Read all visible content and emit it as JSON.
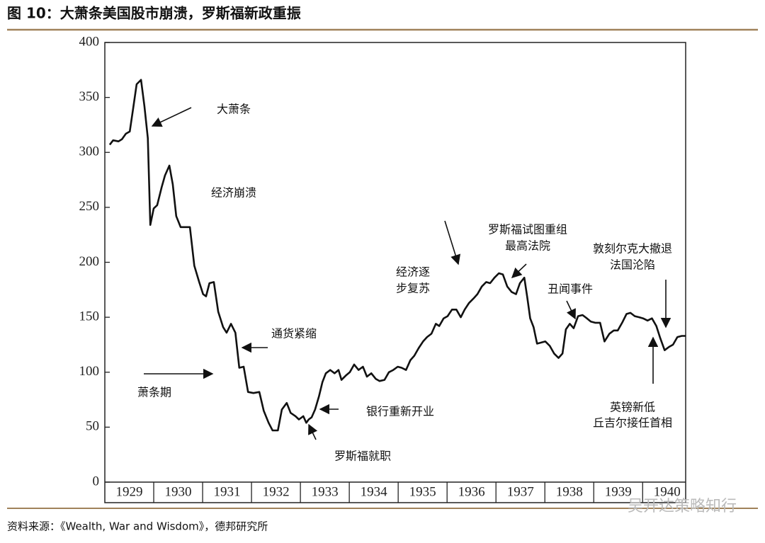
{
  "chart_data": {
    "type": "line",
    "title": "图 10：大萧条美国股市崩溃，罗斯福新政重振",
    "source": "资料来源：《Wealth, War and Wisdom》，德邦研究所",
    "watermark": "吴开达策略知行",
    "color": "#111111",
    "xlim": [
      1929,
      1940.88
    ],
    "ylim": [
      0,
      400
    ],
    "yticks": [
      0,
      50,
      100,
      150,
      200,
      250,
      300,
      350,
      400
    ],
    "xticks": [
      {
        "value": 1929.5,
        "label": "1929"
      },
      {
        "value": 1930.5,
        "label": "1930"
      },
      {
        "value": 1931.5,
        "label": "1931"
      },
      {
        "value": 1932.5,
        "label": "1932"
      },
      {
        "value": 1933.5,
        "label": "1933"
      },
      {
        "value": 1934.5,
        "label": "1934"
      },
      {
        "value": 1935.5,
        "label": "1935"
      },
      {
        "value": 1936.5,
        "label": "1936"
      },
      {
        "value": 1937.5,
        "label": "1937"
      },
      {
        "value": 1938.5,
        "label": "1938"
      },
      {
        "value": 1939.5,
        "label": "1939"
      },
      {
        "value": 1940.5,
        "label": "1940"
      }
    ],
    "x": [
      1929.1,
      1929.17,
      1929.28,
      1929.35,
      1929.43,
      1929.51,
      1929.58,
      1929.65,
      1929.74,
      1929.81,
      1929.88,
      1929.93,
      1930.0,
      1930.07,
      1930.16,
      1930.23,
      1930.32,
      1930.39,
      1930.46,
      1930.55,
      1930.65,
      1930.74,
      1930.83,
      1930.93,
      1931.01,
      1931.07,
      1931.14,
      1931.23,
      1931.32,
      1931.42,
      1931.49,
      1931.58,
      1931.67,
      1931.75,
      1931.84,
      1931.93,
      1932.04,
      1932.16,
      1932.25,
      1932.35,
      1932.43,
      1932.54,
      1932.62,
      1932.72,
      1932.8,
      1932.9,
      1932.97,
      1933.06,
      1933.12,
      1933.17,
      1933.23,
      1933.3,
      1933.38,
      1933.45,
      1933.52,
      1933.61,
      1933.7,
      1933.78,
      1933.84,
      1933.93,
      1934.01,
      1934.1,
      1934.19,
      1934.28,
      1934.36,
      1934.45,
      1934.54,
      1934.62,
      1934.72,
      1934.81,
      1934.9,
      1934.99,
      1935.07,
      1935.16,
      1935.25,
      1935.33,
      1935.42,
      1935.51,
      1935.59,
      1935.68,
      1935.77,
      1935.84,
      1935.93,
      1936.01,
      1936.1,
      1936.19,
      1936.28,
      1936.36,
      1936.45,
      1936.54,
      1936.62,
      1936.71,
      1936.8,
      1936.88,
      1936.97,
      1937.06,
      1937.14,
      1937.23,
      1937.32,
      1937.41,
      1937.49,
      1937.58,
      1937.64,
      1937.7,
      1937.77,
      1937.84,
      1937.93,
      1938.01,
      1938.1,
      1938.19,
      1938.28,
      1938.36,
      1938.43,
      1938.51,
      1938.59,
      1938.68,
      1938.77,
      1938.86,
      1938.94,
      1939.03,
      1939.13,
      1939.22,
      1939.32,
      1939.41,
      1939.49,
      1939.58,
      1939.67,
      1939.75,
      1939.84,
      1939.93,
      1940.01,
      1940.1,
      1940.19,
      1940.28,
      1940.36,
      1940.45,
      1940.54,
      1940.62,
      1940.71,
      1940.8,
      1940.88
    ],
    "values": [
      307,
      311,
      310,
      312,
      317,
      319,
      340,
      362,
      366,
      342,
      313,
      234,
      249,
      252,
      268,
      279,
      288,
      271,
      242,
      232,
      232,
      232,
      197,
      182,
      171,
      169,
      181,
      182,
      155,
      141,
      136,
      144,
      136,
      104,
      105,
      82,
      81,
      82,
      65,
      54,
      47,
      47,
      66,
      72,
      63,
      60,
      57,
      60,
      54,
      57,
      59,
      66,
      78,
      91,
      99,
      102,
      99,
      102,
      93,
      97,
      100,
      107,
      102,
      105,
      96,
      99,
      94,
      92,
      93,
      100,
      102,
      105,
      104,
      102,
      111,
      115,
      122,
      128,
      132,
      135,
      144,
      142,
      149,
      151,
      157,
      157,
      150,
      157,
      163,
      167,
      171,
      178,
      182,
      181,
      186,
      190,
      189,
      178,
      173,
      171,
      181,
      186,
      168,
      149,
      141,
      126,
      127,
      128,
      124,
      117,
      113,
      117,
      139,
      144,
      140,
      151,
      152,
      149,
      146,
      145,
      145,
      128,
      135,
      138,
      138,
      145,
      153,
      154,
      151,
      150,
      149,
      147,
      149,
      142,
      131,
      120,
      123,
      125,
      132,
      133,
      133
    ],
    "annotations": [
      {
        "lines": [
          "大萧条"
        ]
      },
      {
        "lines": [
          "经济崩溃"
        ]
      },
      {
        "lines": [
          "通货紧缩"
        ]
      },
      {
        "lines": [
          "萧条期"
        ]
      },
      {
        "lines": [
          "银行重新开业"
        ]
      },
      {
        "lines": [
          "罗斯福就职"
        ]
      },
      {
        "lines": [
          "经济逐",
          "步复苏"
        ]
      },
      {
        "lines": [
          "罗斯福试图重组",
          "最高法院"
        ]
      },
      {
        "lines": [
          "丑闻事件"
        ]
      },
      {
        "lines": [
          "敦刻尔克大撤退",
          "法国沦陷"
        ]
      },
      {
        "lines": [
          "英镑新低",
          "丘吉尔接任首相"
        ]
      }
    ]
  }
}
